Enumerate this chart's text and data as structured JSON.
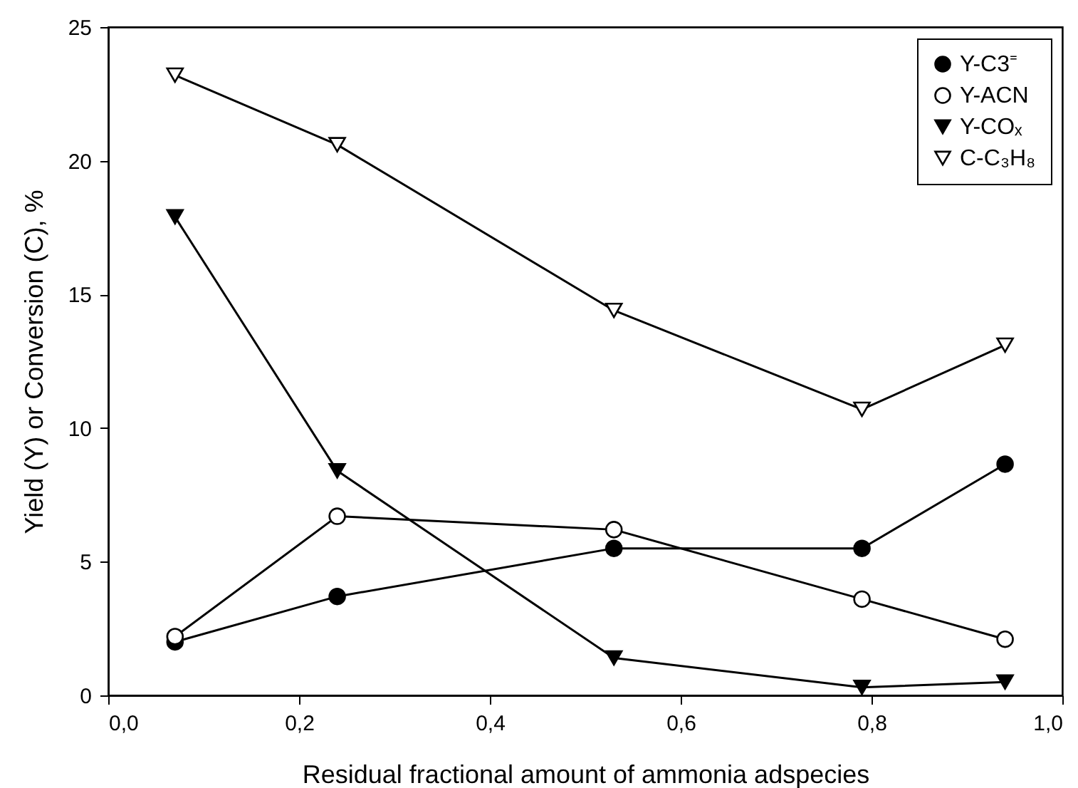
{
  "chart_data": {
    "type": "line",
    "xlabel": "Residual fractional amount of ammonia adspecies",
    "ylabel": "Yield (Y) or Conversion (C), %",
    "x": [
      0.07,
      0.24,
      0.53,
      0.79,
      0.94
    ],
    "series": [
      {
        "name": "Y-C3⁼",
        "color": "#000000",
        "marker": "circle",
        "values": [
          2.0,
          3.7,
          5.5,
          5.5,
          8.65
        ]
      },
      {
        "name": "Y-ACN",
        "color": "#000000",
        "marker": "circle-open",
        "values": [
          2.2,
          6.7,
          6.2,
          3.6,
          2.1
        ]
      },
      {
        "name": "Y-COₓ",
        "color": "#000000",
        "marker": "triangle-down",
        "values": [
          17.9,
          8.4,
          1.4,
          0.3,
          0.5
        ]
      },
      {
        "name": "C-C₃H₈",
        "color": "#000000",
        "marker": "triangle-down-open",
        "values": [
          23.2,
          20.6,
          14.4,
          10.7,
          13.1
        ]
      }
    ],
    "xlim": [
      0,
      1
    ],
    "xticks": [
      {
        "value": 0,
        "label": "0,0"
      },
      {
        "value": 0.2,
        "label": "0,2"
      },
      {
        "value": 0.4,
        "label": "0,4"
      },
      {
        "value": 0.6,
        "label": "0,6"
      },
      {
        "value": 0.8,
        "label": "0,8"
      },
      {
        "value": 1,
        "label": "1,0"
      }
    ],
    "ylim": [
      0,
      25
    ],
    "yticks": [
      0,
      5,
      10,
      15,
      20,
      25
    ],
    "grid": false,
    "legend": "top right",
    "line_style": "solid"
  }
}
